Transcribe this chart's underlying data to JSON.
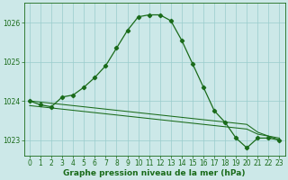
{
  "line1_x": [
    0,
    1,
    2,
    3,
    4,
    5,
    6,
    7,
    8,
    9,
    10,
    11,
    12,
    13,
    14,
    15,
    16,
    17,
    18,
    19,
    20,
    21,
    22,
    23
  ],
  "line1_y": [
    1024.0,
    1023.9,
    1023.85,
    1024.1,
    1024.15,
    1024.35,
    1024.6,
    1024.9,
    1025.35,
    1025.8,
    1026.15,
    1026.2,
    1026.2,
    1026.05,
    1025.55,
    1024.95,
    1024.35,
    1023.75,
    1023.45,
    1023.05,
    1022.8,
    1023.05,
    1023.05,
    1023.0
  ],
  "line2_x": [
    0,
    1,
    2,
    3,
    4,
    5,
    6,
    7,
    8,
    9,
    10,
    11,
    12,
    13,
    14,
    15,
    16,
    17,
    18,
    19,
    20,
    21,
    22,
    23
  ],
  "line2_y": [
    1023.88,
    1023.85,
    1023.82,
    1023.79,
    1023.76,
    1023.73,
    1023.7,
    1023.67,
    1023.64,
    1023.61,
    1023.58,
    1023.55,
    1023.52,
    1023.49,
    1023.46,
    1023.43,
    1023.4,
    1023.37,
    1023.34,
    1023.31,
    1023.28,
    1023.15,
    1023.1,
    1023.05
  ],
  "line3_x": [
    0,
    1,
    2,
    3,
    4,
    5,
    6,
    7,
    8,
    9,
    10,
    11,
    12,
    13,
    14,
    15,
    16,
    17,
    18,
    19,
    20,
    21,
    22,
    23
  ],
  "line3_y": [
    1024.0,
    1023.97,
    1023.94,
    1023.91,
    1023.88,
    1023.85,
    1023.82,
    1023.79,
    1023.76,
    1023.73,
    1023.7,
    1023.67,
    1023.64,
    1023.61,
    1023.58,
    1023.55,
    1023.52,
    1023.49,
    1023.46,
    1023.43,
    1023.4,
    1023.2,
    1023.1,
    1023.0
  ],
  "line_color": "#1a6b1a",
  "bg_color": "#cce8e8",
  "grid_color": "#99cccc",
  "xlabel": "Graphe pression niveau de la mer (hPa)",
  "ylim": [
    1022.6,
    1026.5
  ],
  "xlim": [
    -0.5,
    23.5
  ],
  "yticks": [
    1023,
    1024,
    1025,
    1026
  ],
  "xticks": [
    0,
    1,
    2,
    3,
    4,
    5,
    6,
    7,
    8,
    9,
    10,
    11,
    12,
    13,
    14,
    15,
    16,
    17,
    18,
    19,
    20,
    21,
    22,
    23
  ],
  "tick_fontsize": 5.5,
  "xlabel_fontsize": 6.5
}
